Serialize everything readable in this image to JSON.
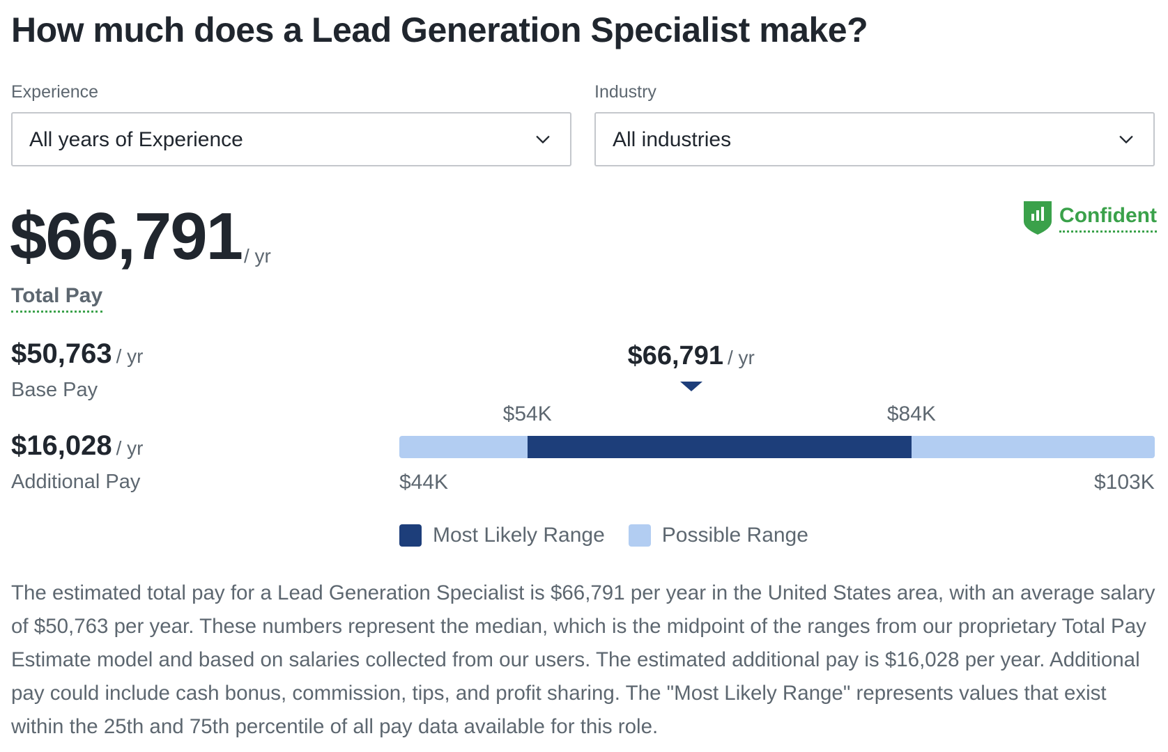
{
  "title": "How much does a Lead Generation Specialist make?",
  "filters": {
    "experience": {
      "label": "Experience",
      "value": "All years of Experience"
    },
    "industry": {
      "label": "Industry",
      "value": "All industries"
    }
  },
  "confidence": {
    "label": "Confident",
    "color": "#3aa14a"
  },
  "total_pay": {
    "amount": "$66,791",
    "suffix": "/ yr",
    "label": "Total Pay"
  },
  "base_pay": {
    "amount": "$50,763",
    "suffix": "/ yr",
    "label": "Base Pay"
  },
  "additional_pay": {
    "amount": "$16,028",
    "suffix": "/ yr",
    "label": "Additional Pay"
  },
  "range": {
    "median_label": "$66,791",
    "median_suffix": "/ yr",
    "likely_low_label": "$54K",
    "likely_high_label": "$84K",
    "min_label": "$44K",
    "max_label": "$103K",
    "colors": {
      "likely": "#1d3e7a",
      "possible": "#b2cdf2"
    }
  },
  "chart_data": {
    "type": "bar",
    "title": "",
    "unit": "USD per year",
    "possible_range": [
      44000,
      103000
    ],
    "most_likely_range": [
      54000,
      84000
    ],
    "median": 66791,
    "legend": [
      "Most Likely Range",
      "Possible Range"
    ]
  },
  "legend": {
    "likely": "Most Likely Range",
    "possible": "Possible Range"
  },
  "description": "The estimated total pay for a Lead Generation Specialist is $66,791 per year in the United States area, with an average salary of $50,763 per year. These numbers represent the median, which is the midpoint of the ranges from our proprietary Total Pay Estimate model and based on salaries collected from our users. The estimated additional pay is $16,028 per year. Additional pay could include cash bonus, commission, tips, and profit sharing. The \"Most Likely Range\" represents values that exist within the 25th and 75th percentile of all pay data available for this role."
}
